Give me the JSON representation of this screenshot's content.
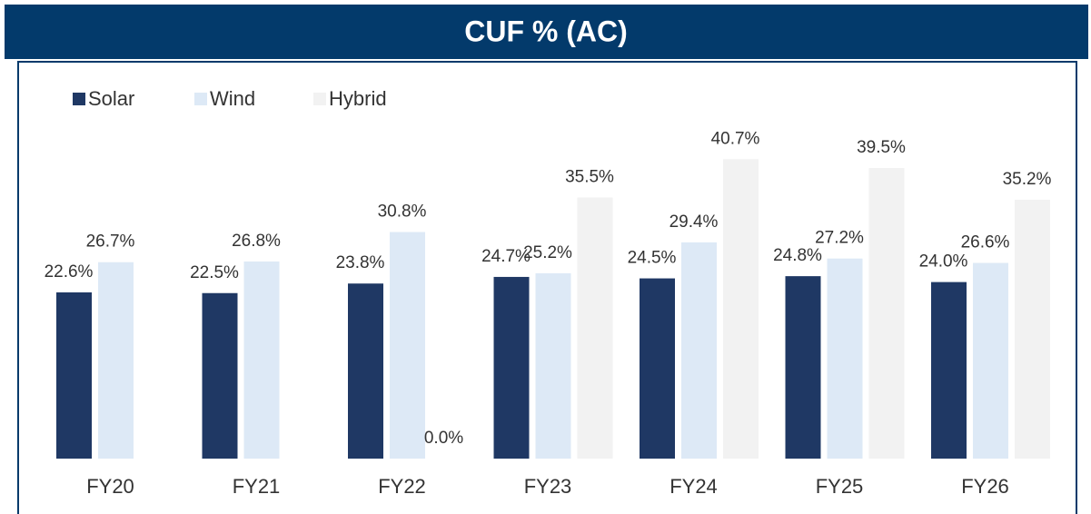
{
  "chart_data": {
    "type": "bar",
    "title": "CUF % (AC)",
    "categories": [
      "FY20",
      "FY21",
      "FY22",
      "FY23",
      "FY24",
      "FY25",
      "FY26"
    ],
    "series": [
      {
        "name": "Solar",
        "color": "#1f3864",
        "values": [
          22.6,
          22.5,
          23.8,
          24.7,
          24.5,
          24.8,
          24.0
        ],
        "value_labels": [
          "22.6%",
          "22.5%",
          "23.8%",
          "24.7%",
          "24.5%",
          "24.8%",
          "24.0%"
        ]
      },
      {
        "name": "Wind",
        "color": "#dde9f6",
        "values": [
          26.7,
          26.8,
          30.8,
          25.2,
          29.4,
          27.2,
          26.6
        ],
        "value_labels": [
          "26.7%",
          "26.8%",
          "30.8%",
          "25.2%",
          "29.4%",
          "27.2%",
          "26.6%"
        ]
      },
      {
        "name": "Hybrid",
        "color": "#f2f2f2",
        "values": [
          null,
          null,
          0.0,
          35.5,
          40.7,
          39.5,
          35.2
        ],
        "value_labels": [
          null,
          null,
          "0.0%",
          "35.5%",
          "40.7%",
          "39.5%",
          "35.2%"
        ]
      }
    ],
    "legend": "top-left"
  }
}
